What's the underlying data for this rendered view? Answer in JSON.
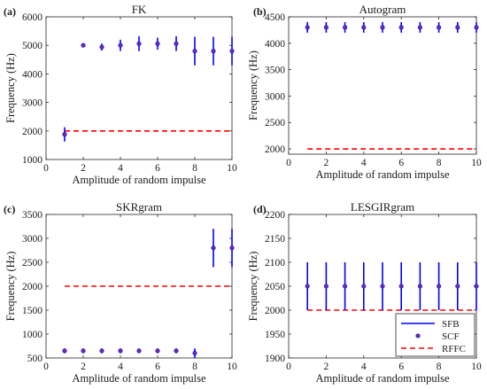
{
  "chart_data": [
    {
      "panel_label": "(a)",
      "title": "FK",
      "type": "scatter",
      "xlabel": "Amplitude of random impulse",
      "ylabel": "Frequency (Hz)",
      "xlim": [
        0,
        10
      ],
      "ylim": [
        1000,
        6000
      ],
      "xticks": [
        0,
        2,
        4,
        6,
        8,
        10
      ],
      "yticks": [
        1000,
        2000,
        3000,
        4000,
        5000,
        6000
      ],
      "x": [
        1,
        2,
        3,
        4,
        5,
        6,
        7,
        8,
        9,
        10
      ],
      "scf": [
        1880,
        5000,
        4940,
        5000,
        5060,
        5060,
        5060,
        4800,
        4800,
        4800
      ],
      "sfb_low": [
        1630,
        4990,
        4820,
        4800,
        4800,
        4850,
        4800,
        4300,
        4300,
        4300
      ],
      "sfb_high": [
        2130,
        5020,
        5060,
        5200,
        5320,
        5270,
        5320,
        5300,
        5300,
        5300
      ],
      "rffc": 2000,
      "rffc_x": [
        1,
        10
      ]
    },
    {
      "panel_label": "(b)",
      "title": "Autogram",
      "type": "scatter",
      "xlabel": "Amplitude of random impulse",
      "ylabel": "Frequency (Hz)",
      "xlim": [
        0,
        10
      ],
      "ylim": [
        1900,
        4500
      ],
      "xticks": [
        0,
        2,
        4,
        6,
        8,
        10
      ],
      "yticks": [
        2000,
        2500,
        3000,
        3500,
        4000,
        4500
      ],
      "x": [
        1,
        2,
        3,
        4,
        5,
        6,
        7,
        8,
        9,
        10
      ],
      "scf": [
        4300,
        4300,
        4300,
        4300,
        4300,
        4300,
        4300,
        4300,
        4300,
        4300
      ],
      "sfb_low": [
        4200,
        4200,
        4200,
        4200,
        4200,
        4200,
        4200,
        4200,
        4200,
        4200
      ],
      "sfb_high": [
        4400,
        4400,
        4400,
        4400,
        4400,
        4400,
        4400,
        4400,
        4400,
        4400
      ],
      "rffc": 2000,
      "rffc_x": [
        1,
        10
      ]
    },
    {
      "panel_label": "(c)",
      "title": "SKRgram",
      "type": "scatter",
      "xlabel": "Amplitude of random impulse",
      "ylabel": "Frequency (Hz)",
      "xlim": [
        0,
        10
      ],
      "ylim": [
        500,
        3500
      ],
      "xticks": [
        0,
        2,
        4,
        6,
        8,
        10
      ],
      "yticks": [
        500,
        1000,
        1500,
        2000,
        2500,
        3000,
        3500
      ],
      "x": [
        1,
        2,
        3,
        4,
        5,
        6,
        7,
        8,
        9,
        10
      ],
      "scf": [
        650,
        650,
        650,
        650,
        650,
        650,
        650,
        600,
        2800,
        2800
      ],
      "sfb_low": [
        600,
        600,
        600,
        600,
        600,
        600,
        600,
        500,
        2400,
        2400
      ],
      "sfb_high": [
        700,
        700,
        700,
        700,
        700,
        700,
        700,
        700,
        3200,
        3200
      ],
      "rffc": 2000,
      "rffc_x": [
        1,
        10
      ]
    },
    {
      "panel_label": "(d)",
      "title": "LESGIRgram",
      "type": "scatter",
      "xlabel": "Amplitude of random impulse",
      "ylabel": "Frequency (Hz)",
      "xlim": [
        0,
        10
      ],
      "ylim": [
        1900,
        2200
      ],
      "xticks": [
        0,
        2,
        4,
        6,
        8,
        10
      ],
      "yticks": [
        1900,
        1950,
        2000,
        2050,
        2100,
        2150,
        2200
      ],
      "x": [
        1,
        2,
        3,
        4,
        5,
        6,
        7,
        8,
        9,
        10
      ],
      "scf": [
        2050,
        2050,
        2050,
        2050,
        2050,
        2050,
        2050,
        2050,
        2050,
        2050
      ],
      "sfb_low": [
        2000,
        2000,
        2000,
        2000,
        2000,
        2000,
        2000,
        2000,
        2000,
        2000
      ],
      "sfb_high": [
        2100,
        2100,
        2100,
        2100,
        2100,
        2100,
        2100,
        2100,
        2100,
        2100
      ],
      "rffc": 2000,
      "rffc_x": [
        1,
        10
      ],
      "legend": {
        "placement": "bottom-right",
        "entries": [
          "SFB",
          "SCF",
          "RFFC"
        ]
      }
    }
  ],
  "colors": {
    "sfb": "#0000ff",
    "scf_fill": "#7e2f8e",
    "scf_edge": "#0000ff",
    "rffc": "#ff0000",
    "axis": "#262626"
  }
}
